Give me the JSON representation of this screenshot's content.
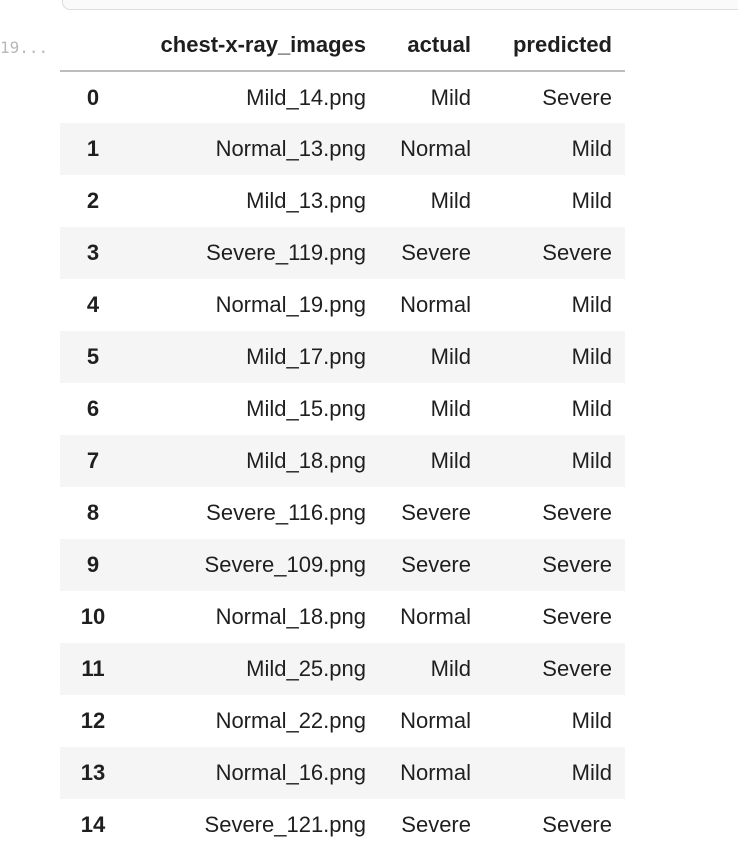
{
  "cell": {
    "execution_count": "19..."
  },
  "table": {
    "headers": [
      "",
      "chest-x-ray_images",
      "actual",
      "predicted"
    ],
    "rows": [
      {
        "index": "0",
        "image": "Mild_14.png",
        "actual": "Mild",
        "predicted": "Severe"
      },
      {
        "index": "1",
        "image": "Normal_13.png",
        "actual": "Normal",
        "predicted": "Mild"
      },
      {
        "index": "2",
        "image": "Mild_13.png",
        "actual": "Mild",
        "predicted": "Mild"
      },
      {
        "index": "3",
        "image": "Severe_119.png",
        "actual": "Severe",
        "predicted": "Severe"
      },
      {
        "index": "4",
        "image": "Normal_19.png",
        "actual": "Normal",
        "predicted": "Mild"
      },
      {
        "index": "5",
        "image": "Mild_17.png",
        "actual": "Mild",
        "predicted": "Mild"
      },
      {
        "index": "6",
        "image": "Mild_15.png",
        "actual": "Mild",
        "predicted": "Mild"
      },
      {
        "index": "7",
        "image": "Mild_18.png",
        "actual": "Mild",
        "predicted": "Mild"
      },
      {
        "index": "8",
        "image": "Severe_116.png",
        "actual": "Severe",
        "predicted": "Severe"
      },
      {
        "index": "9",
        "image": "Severe_109.png",
        "actual": "Severe",
        "predicted": "Severe"
      },
      {
        "index": "10",
        "image": "Normal_18.png",
        "actual": "Normal",
        "predicted": "Severe"
      },
      {
        "index": "11",
        "image": "Mild_25.png",
        "actual": "Mild",
        "predicted": "Severe"
      },
      {
        "index": "12",
        "image": "Normal_22.png",
        "actual": "Normal",
        "predicted": "Mild"
      },
      {
        "index": "13",
        "image": "Normal_16.png",
        "actual": "Normal",
        "predicted": "Mild"
      },
      {
        "index": "14",
        "image": "Severe_121.png",
        "actual": "Severe",
        "predicted": "Severe"
      }
    ]
  }
}
